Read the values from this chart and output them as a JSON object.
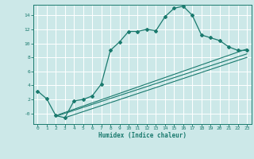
{
  "xlabel": "Humidex (Indice chaleur)",
  "xlim": [
    -0.5,
    23.5
  ],
  "ylim": [
    -1.5,
    15.5
  ],
  "yticks": [
    0,
    2,
    4,
    6,
    8,
    10,
    12,
    14
  ],
  "ytick_labels": [
    "-0",
    "2",
    "4",
    "6",
    "8",
    "10",
    "12",
    "14"
  ],
  "xticks": [
    0,
    1,
    2,
    3,
    4,
    5,
    6,
    7,
    8,
    9,
    10,
    11,
    12,
    13,
    14,
    15,
    16,
    17,
    18,
    19,
    20,
    21,
    22,
    23
  ],
  "line_color": "#1a7a6e",
  "bg_color": "#cce8e8",
  "grid_color": "#ffffff",
  "main_curve_x": [
    0,
    1,
    2,
    3,
    4,
    5,
    6,
    7,
    8,
    9,
    10,
    11,
    12,
    13,
    14,
    15,
    16,
    17,
    18,
    19,
    20,
    21,
    22,
    23
  ],
  "main_curve_y": [
    3.2,
    2.1,
    -0.3,
    -0.6,
    1.8,
    2.0,
    2.5,
    4.2,
    9.0,
    10.2,
    11.7,
    11.7,
    12.0,
    11.8,
    13.8,
    15.0,
    15.3,
    14.0,
    11.2,
    10.8,
    10.4,
    9.5,
    9.0,
    9.0
  ],
  "ref_line1_x": [
    2,
    23
  ],
  "ref_line1_y": [
    -0.3,
    9.2
  ],
  "ref_line2_x": [
    2,
    23
  ],
  "ref_line2_y": [
    -0.4,
    8.5
  ],
  "ref_line3_x": [
    3,
    23
  ],
  "ref_line3_y": [
    -0.6,
    8.0
  ]
}
